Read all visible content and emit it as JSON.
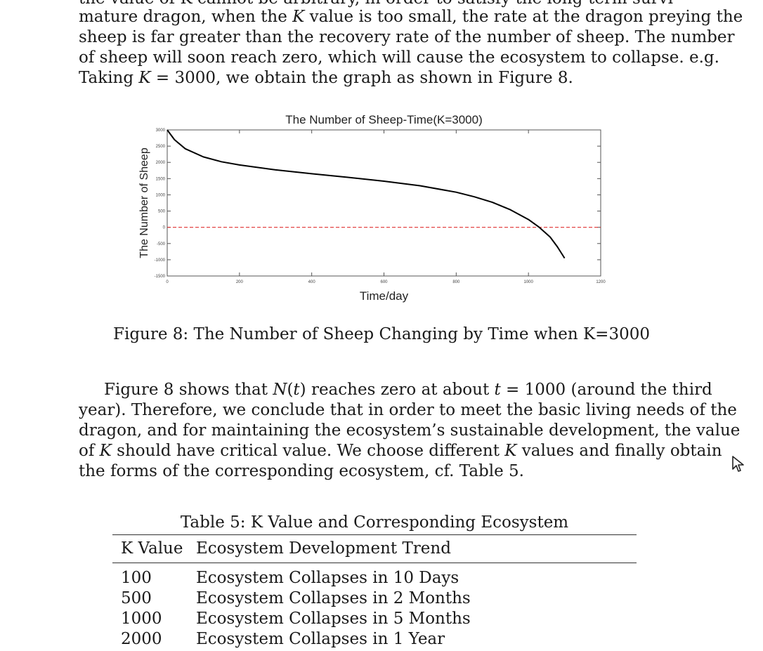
{
  "page": {
    "top_cut_line": "the value of K cannot be arbitrary, in order to satisfy the long-term survival of the",
    "para1": [
      "mature dragon, when the K value is too small, the rate at the dragon preying the",
      "sheep is far greater than the recovery rate of the number of sheep. The number",
      "of sheep will soon reach zero, which will cause the ecosystem to collapse. e.g.",
      "Taking K = 3000, we obtain the graph as shown in Figure 8."
    ],
    "figure_caption": "Figure 8: The Number of Sheep Changing by Time when K=3000",
    "para2": [
      "Figure 8 shows that N(t) reaches zero at about t = 1000 (around the third",
      "year). Therefore, we conclude that in order to meet the basic living needs of the",
      "dragon, and for maintaining the ecosystem’s sustainable development, the value",
      "of K should have critical value. We choose different K values and finally obtain",
      "the forms of the corresponding ecosystem, cf. Table 5."
    ]
  },
  "table": {
    "caption": "Table 5: K Value and Corresponding Ecosystem",
    "headers": [
      "K Value",
      "Ecosystem Development Trend"
    ],
    "rows": [
      [
        "100",
        "Ecosystem Collapses in 10 Days"
      ],
      [
        "500",
        "Ecosystem Collapses in 2 Months"
      ],
      [
        "1000",
        "Ecosystem Collapses in 5 Months"
      ],
      [
        "2000",
        "Ecosystem Collapses in 1 Year"
      ]
    ]
  },
  "chart_data": {
    "type": "line",
    "title": "The Number of Sheep-Time(K=3000)",
    "xlabel": "Time/day",
    "ylabel": "The Number of Sheep",
    "xlim": [
      0,
      1200
    ],
    "ylim": [
      -1500,
      3000
    ],
    "xticks": [
      0,
      200,
      400,
      600,
      800,
      1000,
      1200
    ],
    "yticks": [
      3000,
      2500,
      2000,
      1500,
      1000,
      500,
      0,
      -500,
      -1000,
      -1500
    ],
    "reference_line": {
      "y": 0,
      "color": "#e03030",
      "style": "dashed"
    },
    "grid": false,
    "series": [
      {
        "color": "#000000",
        "x": [
          0,
          20,
          50,
          100,
          150,
          200,
          300,
          400,
          500,
          600,
          700,
          800,
          850,
          900,
          950,
          1000,
          1030,
          1060,
          1080,
          1100
        ],
        "y": [
          3000,
          2700,
          2420,
          2170,
          2020,
          1920,
          1770,
          1650,
          1540,
          1420,
          1280,
          1080,
          940,
          770,
          540,
          240,
          0,
          -300,
          -600,
          -950
        ]
      }
    ]
  }
}
